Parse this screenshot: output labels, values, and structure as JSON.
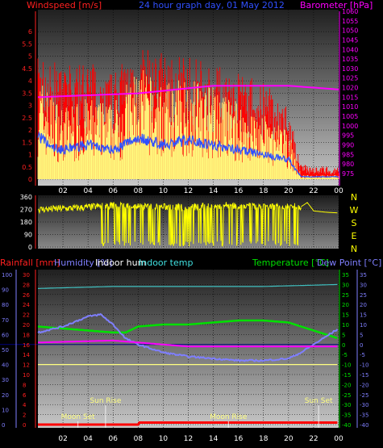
{
  "header": {
    "wind_title": "Windspeed [m/s]",
    "graph_title": "24 hour graph day, 01 May 2012",
    "baro_title": "Barometer [hPa]"
  },
  "colors": {
    "wind": "#ff0000",
    "gust": "#ffff80",
    "avgwind": "#3050ff",
    "baro": "#ff00ff",
    "dir": "#ffff00",
    "temp": "#00e000",
    "dew": "#7f7fff",
    "hum": "#7f7fff",
    "indoor_hum": "#ff00ff",
    "indoor_temp": "#40c0c0",
    "rain": "#ff0000",
    "threshold": "#ffff80",
    "axis_left": "#ff2020",
    "axis_right": "#ff00ff"
  },
  "compass": [
    "N",
    "W",
    "S",
    "E",
    "N"
  ],
  "x_ticks": [
    "02",
    "04",
    "06",
    "08",
    "10",
    "12",
    "14",
    "16",
    "18",
    "20",
    "22",
    "00"
  ],
  "legend_bottom": {
    "rainfall": "Rainfall [mm]",
    "humidity": "Humidity [%]",
    "indoor_hum": "Indoor hum",
    "indoor_temp": "Indoor temp",
    "temperature": "Temperature [°C]",
    "dew_point": "Dew Point [°C]"
  },
  "events": [
    {
      "label": "Sun Rise",
      "time": 5.4
    },
    {
      "label": "Moon Set",
      "time": 3.2
    },
    {
      "label": "Moon Rise",
      "time": 15.2
    },
    {
      "label": "Sun Set",
      "time": 22.4
    }
  ],
  "chart_data": [
    {
      "type": "bar",
      "name": "wind",
      "title": "24 hour graph day, 01 May 2012",
      "ylabel": "Windspeed [m/s]",
      "ylabel2": "Barometer [hPa]",
      "ylim": [
        0,
        6.5
      ],
      "ylim2": [
        972,
        1060
      ],
      "x_range": [
        0,
        24
      ],
      "yticks": [
        "0",
        "0.5",
        "1",
        "1.5",
        "2",
        "2.5",
        "3",
        "3.5",
        "4",
        "4.5",
        "5",
        "5.5",
        "6"
      ],
      "yticks2": [
        "975",
        "980",
        "985",
        "990",
        "995",
        "1000",
        "1005",
        "1010",
        "1015",
        "1020",
        "1025",
        "1030",
        "1035",
        "1040",
        "1045",
        "1050",
        "1055",
        "1060"
      ],
      "series": [
        {
          "name": "Barometer [hPa]",
          "x": [
            0,
            4,
            8,
            11,
            14,
            16,
            18,
            20,
            22,
            24
          ],
          "values": [
            1015,
            1016,
            1017,
            1019,
            1021,
            1021,
            1021,
            1021,
            1020,
            1019
          ]
        },
        {
          "name": "Windspeed [m/s]",
          "x": [
            0,
            2,
            4,
            6,
            8,
            10,
            12,
            14,
            16,
            18,
            20,
            21,
            24
          ],
          "values": [
            2.6,
            1.8,
            2.0,
            1.9,
            2.8,
            2.3,
            2.6,
            2.3,
            1.9,
            1.6,
            1.2,
            0.1,
            0.1
          ]
        },
        {
          "name": "Gust",
          "x": [
            0,
            2,
            4,
            6,
            8,
            10,
            12,
            14,
            16,
            18,
            20,
            21,
            24
          ],
          "values": [
            4.3,
            3.8,
            4.1,
            3.6,
            4.5,
            4.3,
            4.2,
            4.0,
            3.6,
            3.3,
            2.5,
            0.5,
            0.4
          ]
        },
        {
          "name": "Average",
          "x": [
            0,
            1,
            2,
            4,
            6,
            8,
            10,
            12,
            14,
            16,
            18,
            20,
            21,
            24
          ],
          "values": [
            1.8,
            1.3,
            1.2,
            1.4,
            1.2,
            1.7,
            1.4,
            1.6,
            1.4,
            1.2,
            1.0,
            0.8,
            0.1,
            0.1
          ]
        }
      ]
    },
    {
      "type": "scatter",
      "name": "wind-direction",
      "ylim": [
        0,
        360
      ],
      "x_range": [
        0,
        24
      ],
      "yticks": [
        "0",
        "90",
        "180",
        "270",
        "360"
      ],
      "series": [
        {
          "name": "Direction",
          "x": [
            0,
            3,
            6,
            9,
            12,
            15,
            18,
            21,
            21.5,
            22,
            23,
            24
          ],
          "values": [
            270,
            280,
            300,
            290,
            285,
            300,
            290,
            290,
            320,
            260,
            250,
            245
          ]
        }
      ]
    },
    {
      "type": "line",
      "name": "temperature-humidity",
      "x_range": [
        0,
        24
      ],
      "ylim_temp": [
        -40,
        35
      ],
      "ylim_hum": [
        0,
        100
      ],
      "ylim_rain": [
        0,
        30
      ],
      "yticks_rain": [
        "0",
        "2",
        "4",
        "6",
        "8",
        "10",
        "12",
        "14",
        "16",
        "18",
        "20",
        "22",
        "24",
        "26",
        "28",
        "30"
      ],
      "yticks_hum": [
        "0",
        "10",
        "20",
        "30",
        "40",
        "50",
        "60",
        "70",
        "80",
        "90",
        "100"
      ],
      "yticks_temp": [
        "-40",
        "-35",
        "-30",
        "-25",
        "-20",
        "-15",
        "-10",
        "-5",
        "0",
        "5",
        "10",
        "15",
        "20",
        "25",
        "30",
        "35"
      ],
      "series": [
        {
          "name": "Temperature [°C]",
          "x": [
            0,
            2,
            4,
            6,
            7,
            8,
            10,
            12,
            14,
            16,
            18,
            20,
            21,
            22,
            23,
            24
          ],
          "values": [
            9,
            8,
            7,
            6,
            6,
            9,
            10,
            10,
            11,
            12,
            12,
            11,
            9,
            7,
            5,
            3
          ]
        },
        {
          "name": "Dew Point [°C]",
          "x": [
            0,
            2,
            4,
            5,
            6,
            7,
            8,
            10,
            12,
            14,
            16,
            18,
            20,
            21,
            22,
            23,
            24
          ],
          "values": [
            6,
            9,
            14,
            15,
            10,
            3,
            0,
            -4,
            -6,
            -7,
            -8,
            -8,
            -7,
            -4,
            0,
            4,
            8
          ]
        },
        {
          "name": "Indoor temp",
          "x": [
            0,
            6,
            12,
            18,
            24
          ],
          "values": [
            28,
            29,
            29,
            29,
            30
          ]
        },
        {
          "name": "Indoor hum",
          "x": [
            0,
            6,
            8,
            12,
            18,
            24
          ],
          "values": [
            1,
            2,
            1,
            -1,
            -1,
            -1
          ]
        },
        {
          "name": "Humidity [%]",
          "x": [
            0,
            6,
            8,
            12,
            18,
            24
          ],
          "values": [
            -10,
            -10,
            -10,
            -10,
            -10,
            -10
          ]
        },
        {
          "name": "Rainfall [mm]",
          "x": [
            0,
            8,
            8.01,
            24
          ],
          "values": [
            0,
            0,
            0.4,
            0.4
          ]
        }
      ]
    }
  ]
}
